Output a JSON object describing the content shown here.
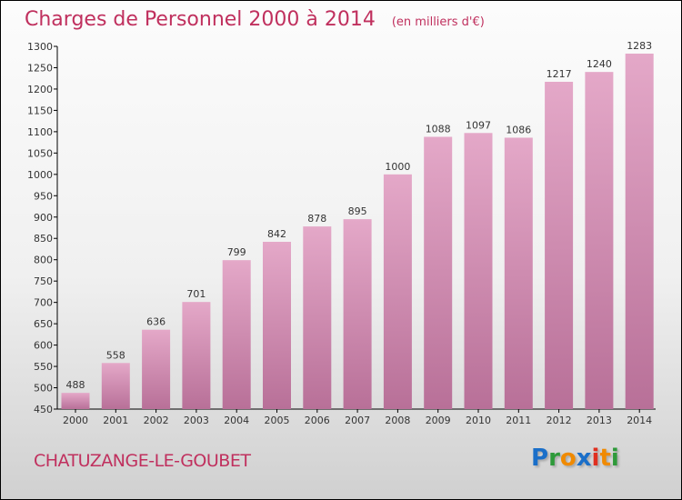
{
  "title": "Charges de Personnel 2000 à 2014",
  "unit": "(en milliers d'€)",
  "commune": "CHATUZANGE-LE-GOUBET",
  "logo": {
    "letters": [
      "P",
      "r",
      "o",
      "x",
      "i",
      "t",
      "i"
    ],
    "colors": [
      "#1a6fc9",
      "#2e9a3a",
      "#f08a00",
      "#1a6fc9",
      "#e03020",
      "#f08a00",
      "#2e9a3a"
    ]
  },
  "chart_data": {
    "type": "bar",
    "title": "Charges de Personnel 2000 à 2014",
    "ylabel": "(en milliers d'€)",
    "categories": [
      "2000",
      "2001",
      "2002",
      "2003",
      "2004",
      "2005",
      "2006",
      "2007",
      "2008",
      "2009",
      "2010",
      "2011",
      "2012",
      "2013",
      "2014"
    ],
    "values": [
      488,
      558,
      636,
      701,
      799,
      842,
      878,
      895,
      1000,
      1088,
      1097,
      1086,
      1217,
      1240,
      1283
    ],
    "ylim": [
      450,
      1300
    ],
    "yticks": [
      450,
      500,
      550,
      600,
      650,
      700,
      750,
      800,
      850,
      900,
      950,
      1000,
      1050,
      1100,
      1150,
      1200,
      1250,
      1300
    ],
    "grid": false,
    "bar_color": "#d080a8"
  }
}
